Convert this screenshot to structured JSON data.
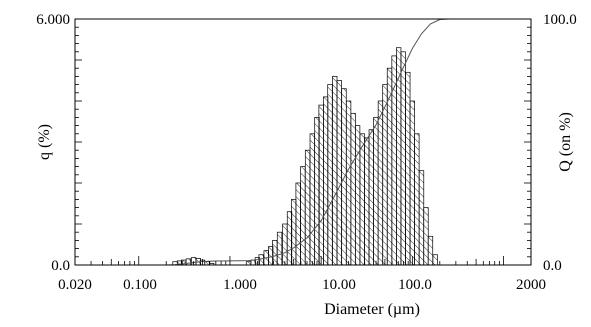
{
  "chart_data": {
    "type": "bar",
    "title": "",
    "xlabel": "Diameter (µm)",
    "ylabel": "q (%)",
    "y2label": "Q (on %)",
    "xscale": "log",
    "xlim": [
      0.02,
      2000
    ],
    "ylim": [
      0,
      6
    ],
    "y2lim": [
      0,
      100
    ],
    "x_ticks": [
      "0.020",
      "0.100",
      "1.000",
      "10.00",
      "100.0",
      "2000"
    ],
    "y_ticks": [
      "0.0",
      "6.000"
    ],
    "y2_ticks": [
      "0.0",
      "100.0"
    ],
    "grid": false,
    "legend": "none",
    "bar_fill": "hatched",
    "series": [
      {
        "kind": "histogram",
        "axis": "left",
        "bins": [
          [
            0.25,
            0.08
          ],
          [
            0.28,
            0.1
          ],
          [
            0.31,
            0.12
          ],
          [
            0.35,
            0.15
          ],
          [
            0.4,
            0.18
          ],
          [
            0.45,
            0.16
          ],
          [
            0.5,
            0.12
          ],
          [
            0.56,
            0.08
          ],
          [
            0.63,
            0.04
          ],
          [
            1.6,
            0.08
          ],
          [
            1.8,
            0.12
          ],
          [
            2.0,
            0.18
          ],
          [
            2.2,
            0.25
          ],
          [
            2.5,
            0.35
          ],
          [
            2.8,
            0.45
          ],
          [
            3.1,
            0.6
          ],
          [
            3.5,
            0.8
          ],
          [
            4.0,
            1.0
          ],
          [
            4.5,
            1.3
          ],
          [
            5.0,
            1.6
          ],
          [
            5.6,
            2.0
          ],
          [
            6.3,
            2.4
          ],
          [
            7.1,
            2.8
          ],
          [
            8.0,
            3.2
          ],
          [
            9.0,
            3.6
          ],
          [
            10.0,
            3.9
          ],
          [
            11.2,
            4.1
          ],
          [
            12.5,
            4.4
          ],
          [
            14.1,
            4.6
          ],
          [
            15.8,
            4.5
          ],
          [
            17.8,
            4.3
          ],
          [
            20.0,
            4.0
          ],
          [
            22.4,
            3.7
          ],
          [
            25.1,
            3.4
          ],
          [
            28.2,
            3.2
          ],
          [
            31.6,
            3.1
          ],
          [
            35.5,
            3.3
          ],
          [
            39.8,
            3.6
          ],
          [
            44.7,
            4.0
          ],
          [
            50.1,
            4.4
          ],
          [
            56.2,
            4.8
          ],
          [
            63.1,
            5.1
          ],
          [
            70.8,
            5.3
          ],
          [
            79.4,
            5.2
          ],
          [
            89.1,
            4.7
          ],
          [
            100,
            4.0
          ],
          [
            112,
            3.2
          ],
          [
            126,
            2.3
          ],
          [
            141,
            1.4
          ],
          [
            158,
            0.7
          ],
          [
            178,
            0.25
          ]
        ]
      },
      {
        "kind": "cumulative",
        "axis": "right",
        "points": [
          [
            0.2,
            0
          ],
          [
            0.25,
            0.1
          ],
          [
            0.3,
            0.4
          ],
          [
            0.4,
            1.0
          ],
          [
            0.5,
            1.4
          ],
          [
            0.7,
            1.6
          ],
          [
            1.0,
            1.7
          ],
          [
            1.6,
            1.8
          ],
          [
            2.0,
            2.2
          ],
          [
            3.0,
            3.5
          ],
          [
            4.0,
            5.0
          ],
          [
            5.0,
            7.0
          ],
          [
            7.0,
            11
          ],
          [
            10.0,
            18
          ],
          [
            14.0,
            28
          ],
          [
            20.0,
            39
          ],
          [
            28.0,
            48
          ],
          [
            40.0,
            57
          ],
          [
            56.0,
            68
          ],
          [
            79.0,
            80
          ],
          [
            100,
            88
          ],
          [
            126,
            94
          ],
          [
            158,
            98
          ],
          [
            200,
            99.8
          ],
          [
            251,
            100
          ],
          [
            330,
            100
          ]
        ]
      }
    ]
  }
}
